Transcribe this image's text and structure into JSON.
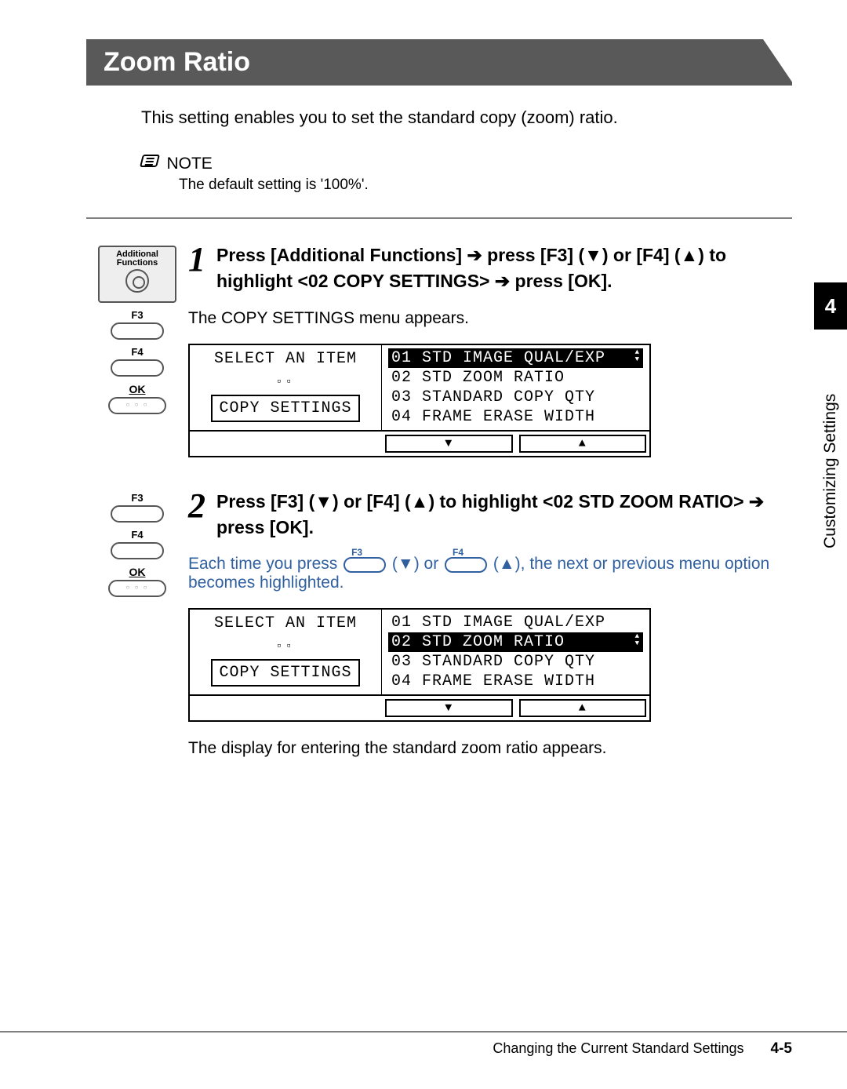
{
  "title": "Zoom Ratio",
  "intro": "This setting enables you to set the standard copy (zoom) ratio.",
  "note": {
    "label": "NOTE",
    "text": "The default setting is '100%'."
  },
  "sideTab": {
    "chapter": "4",
    "label": "Customizing Settings"
  },
  "keys": {
    "addFunc": "Additional Functions",
    "f3": "F3",
    "f4": "F4",
    "ok": "OK"
  },
  "step1": {
    "heading_a": "Press [Additional Functions] ",
    "heading_b": " press [F3] (▼) or [F4] (▲) to highlight <02 COPY SETTINGS> ",
    "heading_c": " press [OK].",
    "arrow": "➔",
    "sub": "The COPY SETTINGS menu appears.",
    "lcd": {
      "leftTitle": "SELECT AN ITEM",
      "leftBox": "COPY SETTINGS",
      "rows": [
        {
          "t": "01 STD IMAGE QUAL/EXP",
          "sel": true
        },
        {
          "t": "02 STD ZOOM RATIO",
          "sel": false
        },
        {
          "t": "03 STANDARD COPY QTY",
          "sel": false
        },
        {
          "t": "04 FRAME ERASE WIDTH",
          "sel": false
        }
      ]
    }
  },
  "step2": {
    "heading_a": "Press [F3] (▼) or [F4] (▲) to highlight <02 STD ZOOM RATIO> ",
    "heading_b": " press [OK].",
    "arrow": "➔",
    "sub_a": "Each time you press ",
    "sub_b": " (▼) or ",
    "sub_c": " (▲), the next or previous menu option becomes highlighted.",
    "lcd": {
      "leftTitle": "SELECT AN ITEM",
      "leftBox": "COPY SETTINGS",
      "rows": [
        {
          "t": "01 STD IMAGE QUAL/EXP",
          "sel": false
        },
        {
          "t": "02 STD ZOOM RATIO",
          "sel": true
        },
        {
          "t": "03 STANDARD COPY QTY",
          "sel": false
        },
        {
          "t": "04 FRAME ERASE WIDTH",
          "sel": false
        }
      ]
    },
    "after": "The display for entering the standard zoom ratio appears."
  },
  "footer": {
    "text": "Changing the Current Standard Settings",
    "page": "4-5"
  },
  "glyph": {
    "down": "▼",
    "up": "▲",
    "sq": "▫▫"
  }
}
